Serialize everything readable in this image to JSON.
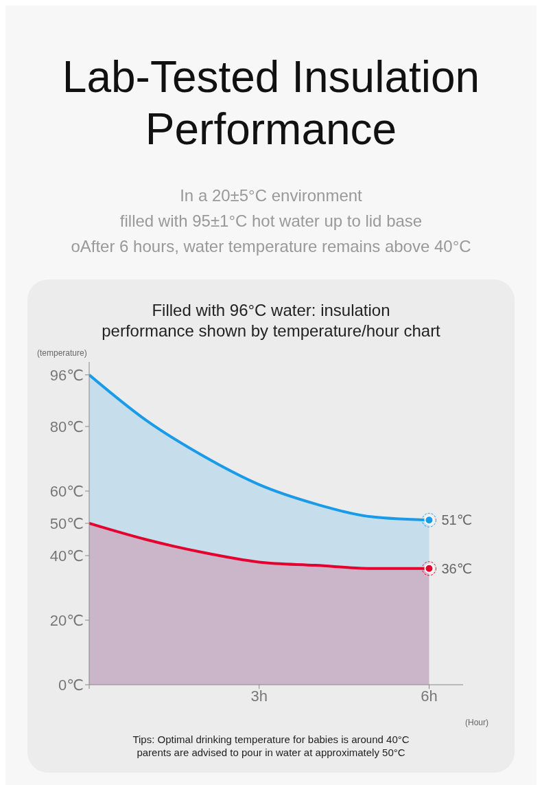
{
  "chart_data": {
    "type": "area",
    "title": "Lab-Tested Insulation Performance",
    "subtitle": "In a 20±5°C environment\nfilled with 95±1°C hot water up to lid base\noAfter 6 hours, water temperature remains above 40°C",
    "annotations": [
      "Filled with 96°C water: insulation\nperformance shown by temperature/hour chart",
      "Tips: Optimal drinking temperature for babies is around 40°C\nparents are advised to pour in water at approximately 50°C"
    ],
    "xlabel": "(Hour)",
    "ylabel": "(temperature)",
    "x": [
      0,
      1,
      2,
      3,
      4,
      5,
      6
    ],
    "series": [
      {
        "color": "#1a9be8",
        "values": [
          96,
          82,
          71,
          62,
          56,
          52,
          51
        ],
        "value_labels": [
          null,
          null,
          null,
          null,
          null,
          null,
          "51℃"
        ]
      },
      {
        "color": "#e6002d",
        "values": [
          50,
          45,
          41,
          38,
          37,
          36,
          36
        ],
        "value_labels": [
          null,
          null,
          null,
          null,
          null,
          null,
          "36℃"
        ]
      }
    ],
    "xlim": [
      0,
      6.6
    ],
    "xticks": [
      {
        "value": 0,
        "label": null
      },
      {
        "value": 3,
        "label": "3h"
      },
      {
        "value": 6,
        "label": "6h"
      }
    ],
    "ylim": [
      0,
      100
    ],
    "yticks": [
      {
        "value": 0,
        "label": "0℃"
      },
      {
        "value": 20,
        "label": "20℃"
      },
      {
        "value": 40,
        "label": "40℃"
      },
      {
        "value": 50,
        "label": "50℃"
      },
      {
        "value": 60,
        "label": "60℃"
      },
      {
        "value": 80,
        "label": "80℃"
      },
      {
        "value": 96,
        "label": "96℃"
      }
    ],
    "grid": false,
    "legend": false,
    "marker": "none",
    "line_style": "solid"
  }
}
